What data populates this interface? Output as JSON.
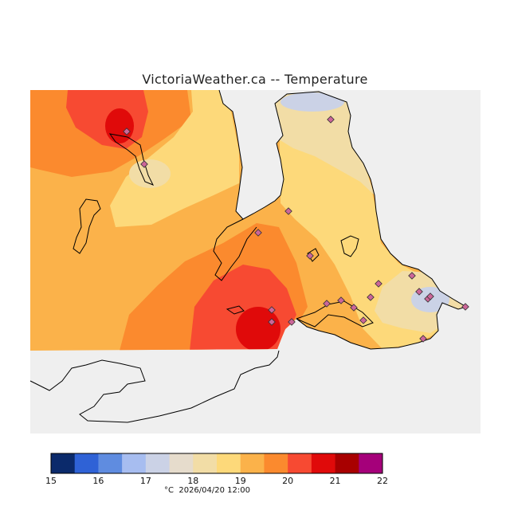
{
  "title": "VictoriaWeather.ca -- Temperature",
  "caption": {
    "unit": "°C",
    "timestamp": "2026/04/20 12:00"
  },
  "scale": {
    "labels": [
      "15",
      "16",
      "17",
      "18",
      "19",
      "20",
      "21",
      "22"
    ],
    "colors": [
      "#0b2a6b",
      "#2f62d6",
      "#5f8ce0",
      "#a7bdf0",
      "#cbd2e6",
      "#e6dccc",
      "#f2dda6",
      "#fdd97a",
      "#fbb24a",
      "#fb8a2e",
      "#f74a32",
      "#e00a0a",
      "#a80000",
      "#a5007a"
    ]
  },
  "map": {
    "background_color": "#efefef",
    "land_color": "#ffffff",
    "station_color": "#cc6699"
  }
}
